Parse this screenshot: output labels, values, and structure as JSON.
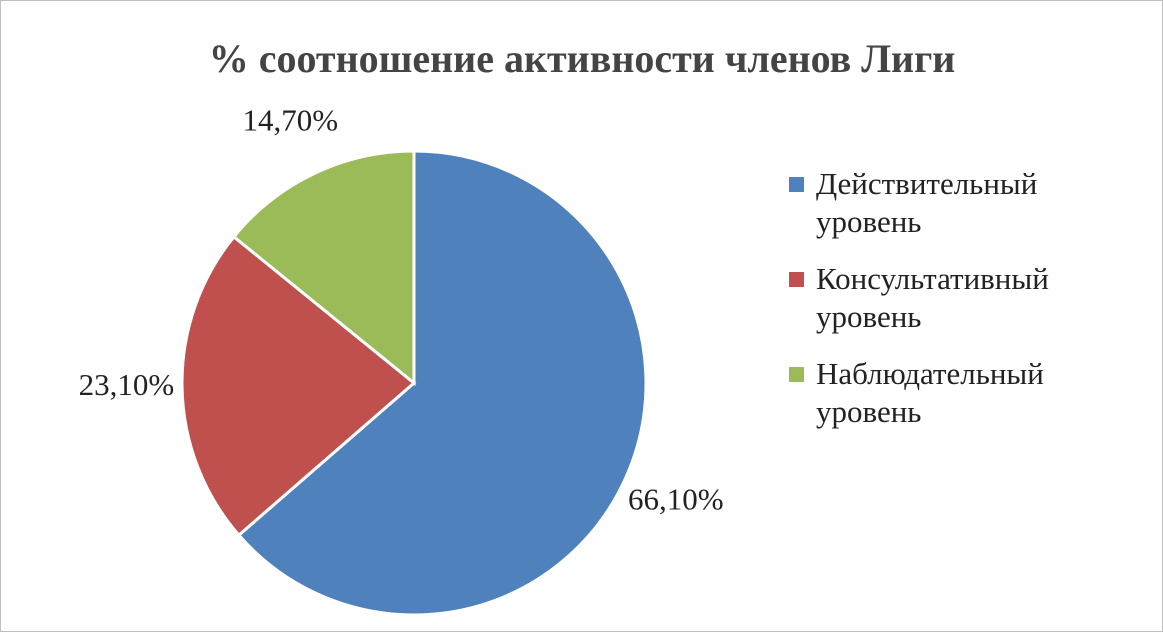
{
  "chart_data": {
    "type": "pie",
    "title": "% соотношение активности членов Лиги",
    "categories": [
      "Действительный уровень",
      "Консультативный уровень",
      "Наблюдательный уровень"
    ],
    "values": [
      66.1,
      23.1,
      14.7
    ],
    "value_labels": [
      "66,10%",
      "23,10%",
      "14,70%"
    ],
    "colors": [
      "#4f81bd",
      "#c0504d",
      "#9bbb59"
    ],
    "legend": "right"
  }
}
